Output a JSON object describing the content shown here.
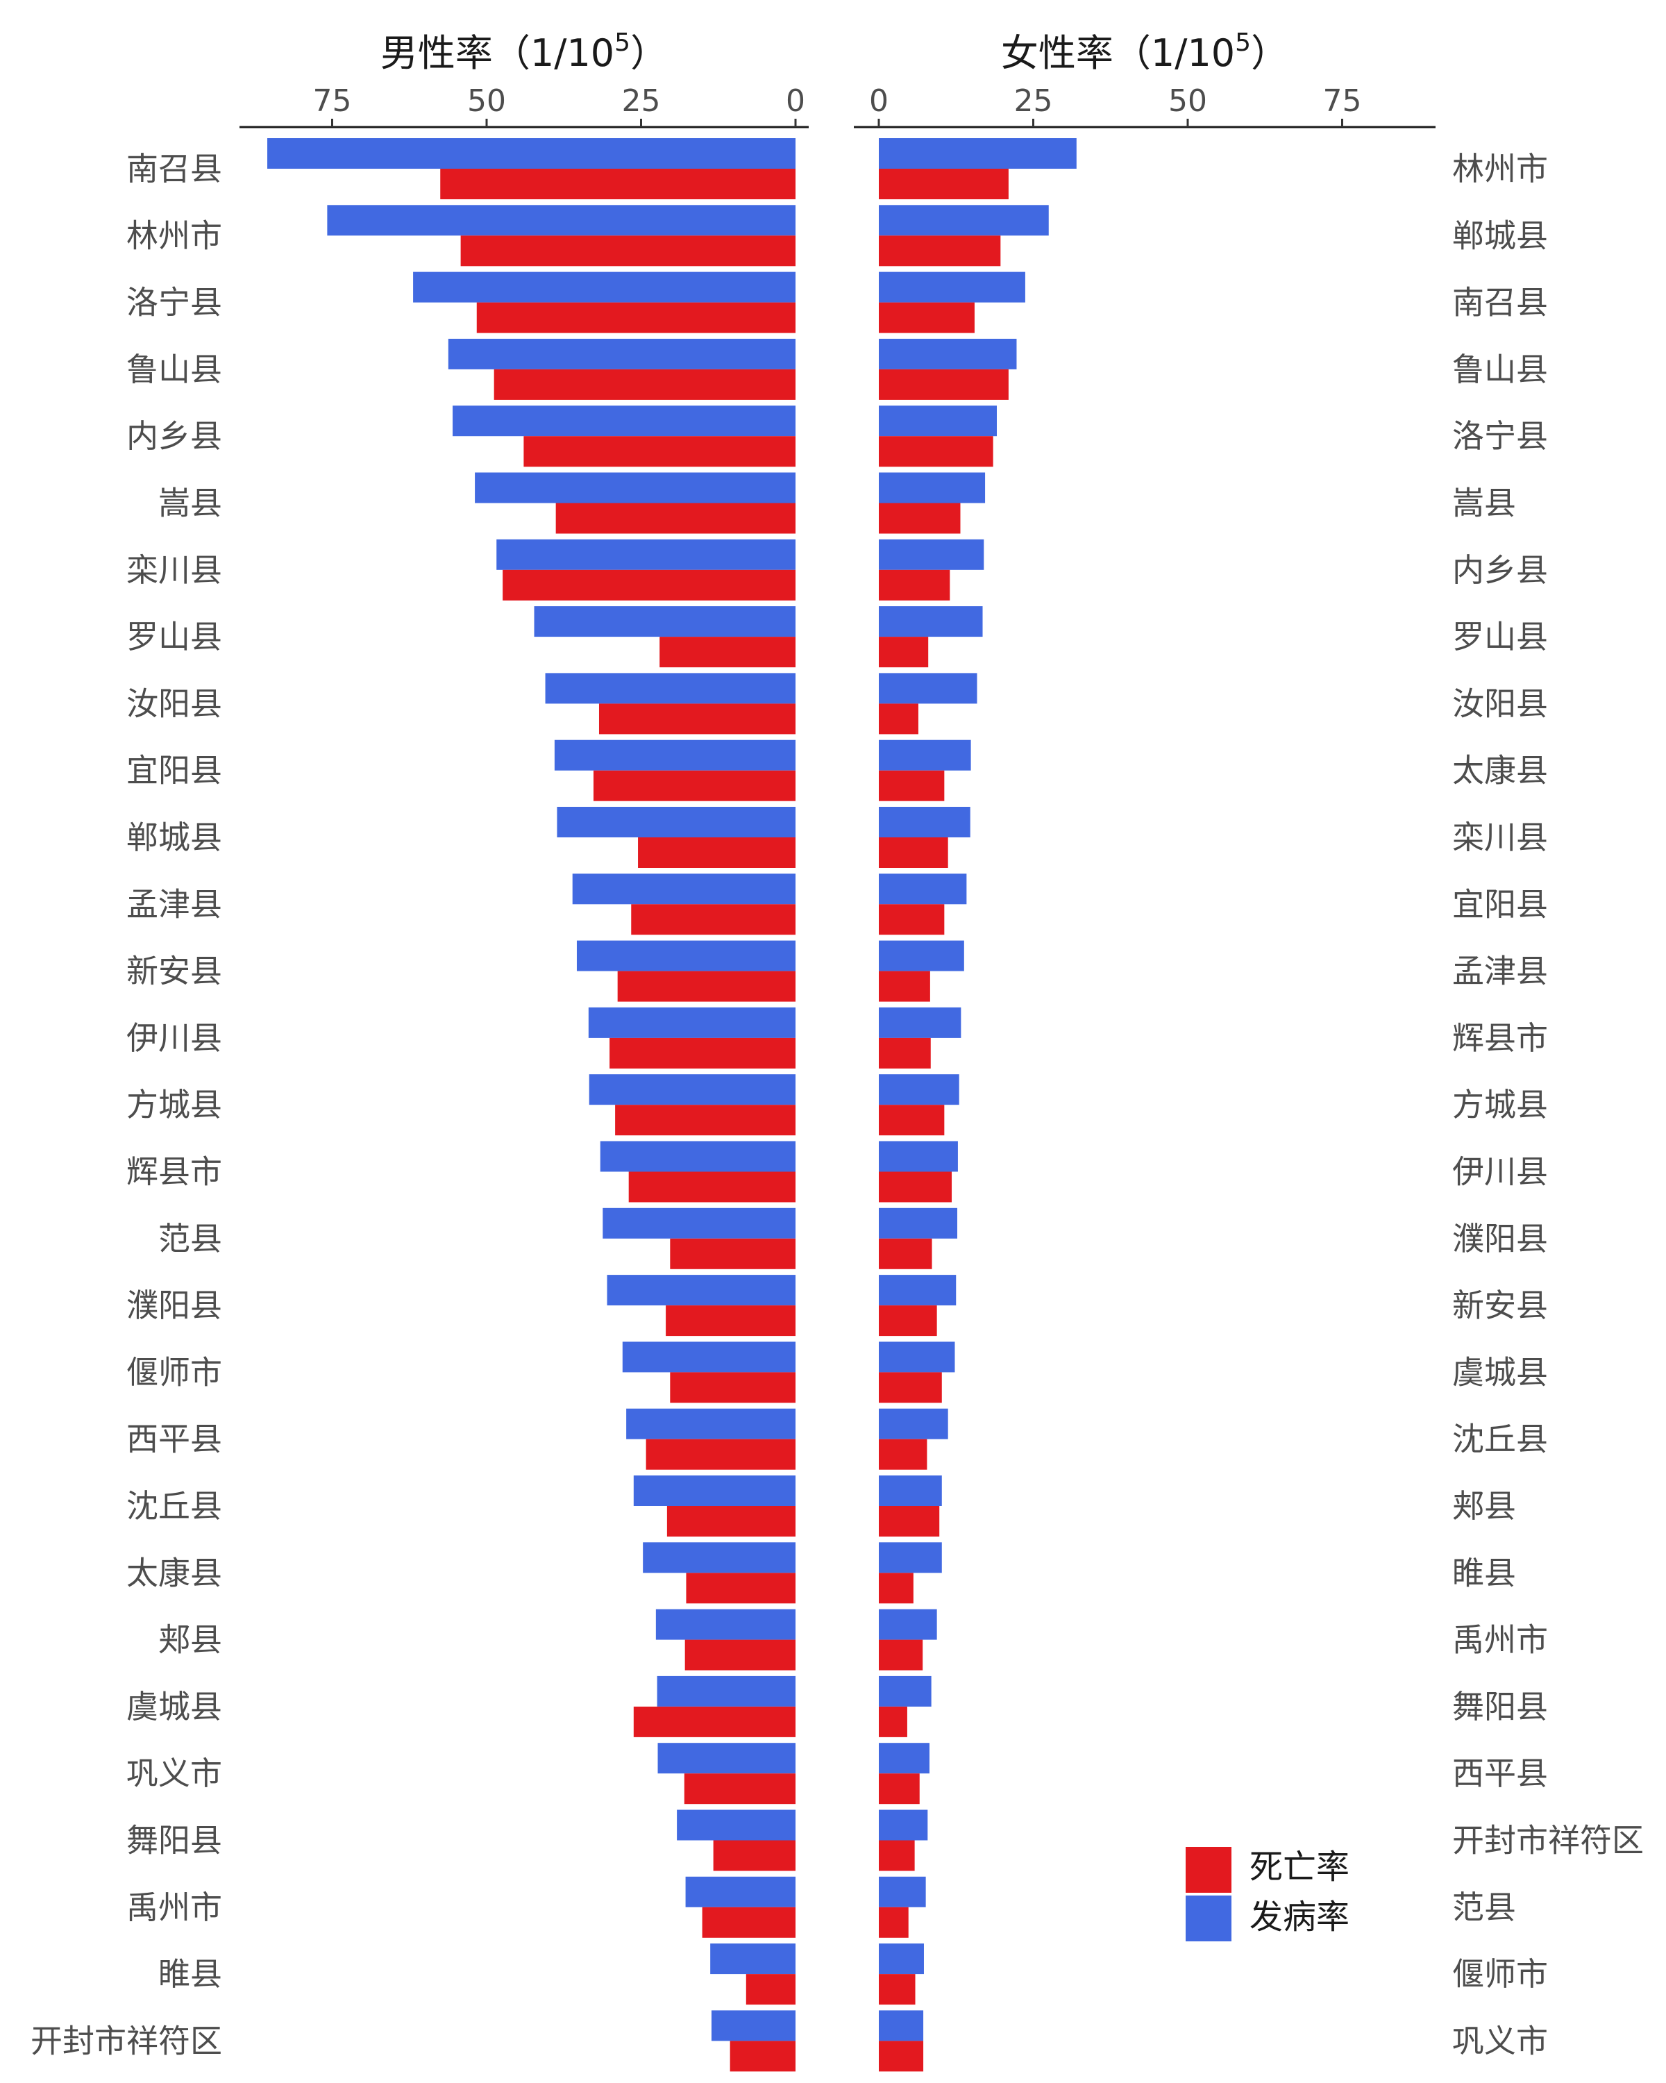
{
  "chart_data": {
    "type": "bar",
    "colors": {
      "death": "#e3191f",
      "incidence": "#4169e1"
    },
    "legend": {
      "placement": "bottom-right",
      "items": [
        {
          "key": "death",
          "label": "死亡率"
        },
        {
          "key": "incidence",
          "label": "发病率"
        }
      ]
    },
    "panels": [
      {
        "key": "male",
        "title_prefix": "男性率（1/10",
        "title_sup": "5",
        "title_suffix": "）",
        "orientation": "reversed",
        "xlim": [
          0,
          90
        ],
        "ticks": [
          "75",
          "50",
          "25",
          "0"
        ],
        "categories": [
          "南召县",
          "林州市",
          "洛宁县",
          "鲁山县",
          "内乡县",
          "嵩县",
          "栾川县",
          "罗山县",
          "汝阳县",
          "宜阳县",
          "郸城县",
          "孟津县",
          "新安县",
          "伊川县",
          "方城县",
          "辉县市",
          "范县",
          "濮阳县",
          "偃师市",
          "西平县",
          "沈丘县",
          "太康县",
          "郏县",
          "虞城县",
          "巩义市",
          "舞阳县",
          "禹州市",
          "睢县",
          "开封市祥符区"
        ],
        "series": [
          {
            "key": "incidence",
            "name": "发病率",
            "values": [
              85.5,
              75.8,
              61.9,
              56.2,
              55.5,
              51.9,
              48.4,
              42.3,
              40.5,
              39.0,
              38.6,
              36.1,
              35.4,
              33.5,
              33.4,
              31.6,
              31.2,
              30.5,
              28.0,
              27.4,
              26.2,
              24.7,
              22.6,
              22.4,
              22.3,
              19.2,
              17.8,
              13.8,
              13.6
            ]
          },
          {
            "key": "death",
            "name": "死亡率",
            "values": [
              57.5,
              54.2,
              51.6,
              48.8,
              44.0,
              38.8,
              47.4,
              22.0,
              31.8,
              32.7,
              25.5,
              26.6,
              28.8,
              30.1,
              29.2,
              27.0,
              20.3,
              21.0,
              20.3,
              24.2,
              20.8,
              17.7,
              17.9,
              26.2,
              18.0,
              13.3,
              15.1,
              8.0,
              10.6
            ]
          }
        ]
      },
      {
        "key": "female",
        "title_prefix": "女性率（1/10",
        "title_sup": "5",
        "title_suffix": "）",
        "orientation": "normal",
        "xlim": [
          0,
          90
        ],
        "ticks": [
          "0",
          "25",
          "50",
          "75"
        ],
        "categories": [
          "林州市",
          "郸城县",
          "南召县",
          "鲁山县",
          "洛宁县",
          "嵩县",
          "内乡县",
          "罗山县",
          "汝阳县",
          "太康县",
          "栾川县",
          "宜阳县",
          "孟津县",
          "辉县市",
          "方城县",
          "伊川县",
          "濮阳县",
          "新安县",
          "虞城县",
          "沈丘县",
          "郏县",
          "睢县",
          "禹州市",
          "舞阳县",
          "西平县",
          "开封市祥符区",
          "范县",
          "偃师市",
          "巩义市"
        ],
        "series": [
          {
            "key": "incidence",
            "name": "发病率",
            "values": [
              32.0,
              27.5,
              23.7,
              22.3,
              19.1,
              17.2,
              17.0,
              16.8,
              15.9,
              14.9,
              14.8,
              14.2,
              13.8,
              13.3,
              13.0,
              12.8,
              12.7,
              12.5,
              12.3,
              11.2,
              10.2,
              10.2,
              9.4,
              8.5,
              8.2,
              7.9,
              7.6,
              7.3,
              7.2
            ]
          },
          {
            "key": "death",
            "name": "死亡率",
            "values": [
              21.0,
              19.7,
              15.5,
              21.0,
              18.5,
              13.2,
              11.5,
              8.0,
              6.4,
              10.6,
              11.2,
              10.6,
              8.3,
              8.4,
              10.6,
              11.8,
              8.6,
              9.4,
              10.2,
              7.8,
              9.8,
              5.6,
              7.1,
              4.6,
              6.6,
              5.8,
              4.8,
              5.9,
              7.2
            ]
          }
        ]
      }
    ]
  }
}
